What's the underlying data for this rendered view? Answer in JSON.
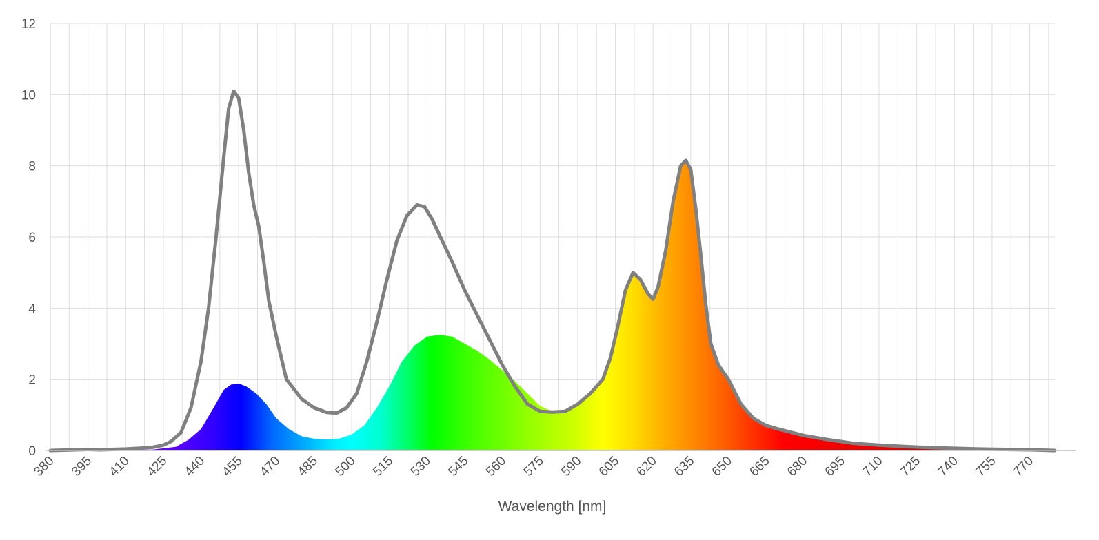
{
  "chart_data": {
    "type": "area",
    "xlabel": "Wavelength [nm]",
    "ylabel": "",
    "xlim": [
      380,
      780
    ],
    "ylim": [
      0,
      12
    ],
    "grid": true,
    "x_ticks": [
      380,
      395,
      410,
      425,
      440,
      455,
      470,
      485,
      500,
      515,
      530,
      545,
      560,
      575,
      590,
      605,
      620,
      635,
      650,
      665,
      680,
      695,
      710,
      725,
      740,
      755,
      770
    ],
    "y_ticks": [
      0,
      2,
      4,
      6,
      8,
      10,
      12
    ],
    "series": [
      {
        "style": "line",
        "color": "#808080",
        "points": [
          [
            380,
            0.0
          ],
          [
            390,
            0.02
          ],
          [
            395,
            0.03
          ],
          [
            400,
            0.02
          ],
          [
            410,
            0.04
          ],
          [
            420,
            0.08
          ],
          [
            425,
            0.15
          ],
          [
            428,
            0.25
          ],
          [
            432,
            0.5
          ],
          [
            436,
            1.2
          ],
          [
            440,
            2.5
          ],
          [
            443,
            4.0
          ],
          [
            446,
            6.0
          ],
          [
            449,
            8.2
          ],
          [
            451,
            9.6
          ],
          [
            453,
            10.1
          ],
          [
            455,
            9.9
          ],
          [
            457,
            9.0
          ],
          [
            459,
            7.8
          ],
          [
            461,
            6.9
          ],
          [
            463,
            6.3
          ],
          [
            465,
            5.3
          ],
          [
            467,
            4.2
          ],
          [
            470,
            3.2
          ],
          [
            474,
            2.0
          ],
          [
            480,
            1.45
          ],
          [
            485,
            1.2
          ],
          [
            490,
            1.07
          ],
          [
            494,
            1.05
          ],
          [
            498,
            1.2
          ],
          [
            502,
            1.6
          ],
          [
            506,
            2.5
          ],
          [
            510,
            3.6
          ],
          [
            514,
            4.8
          ],
          [
            518,
            5.9
          ],
          [
            522,
            6.6
          ],
          [
            526,
            6.9
          ],
          [
            529,
            6.85
          ],
          [
            532,
            6.5
          ],
          [
            536,
            5.9
          ],
          [
            540,
            5.3
          ],
          [
            545,
            4.5
          ],
          [
            550,
            3.8
          ],
          [
            555,
            3.1
          ],
          [
            560,
            2.4
          ],
          [
            565,
            1.8
          ],
          [
            570,
            1.3
          ],
          [
            575,
            1.1
          ],
          [
            580,
            1.08
          ],
          [
            585,
            1.1
          ],
          [
            590,
            1.3
          ],
          [
            595,
            1.6
          ],
          [
            600,
            2.0
          ],
          [
            603,
            2.6
          ],
          [
            606,
            3.5
          ],
          [
            609,
            4.5
          ],
          [
            612,
            5.0
          ],
          [
            615,
            4.8
          ],
          [
            618,
            4.4
          ],
          [
            620,
            4.25
          ],
          [
            622,
            4.6
          ],
          [
            625,
            5.6
          ],
          [
            628,
            7.0
          ],
          [
            631,
            8.0
          ],
          [
            633,
            8.15
          ],
          [
            635,
            7.9
          ],
          [
            637,
            6.8
          ],
          [
            639,
            5.5
          ],
          [
            641,
            4.1
          ],
          [
            643,
            3.0
          ],
          [
            646,
            2.4
          ],
          [
            650,
            2.0
          ],
          [
            655,
            1.3
          ],
          [
            660,
            0.9
          ],
          [
            665,
            0.7
          ],
          [
            670,
            0.6
          ],
          [
            680,
            0.42
          ],
          [
            690,
            0.3
          ],
          [
            700,
            0.2
          ],
          [
            710,
            0.15
          ],
          [
            720,
            0.11
          ],
          [
            730,
            0.08
          ],
          [
            740,
            0.06
          ],
          [
            750,
            0.04
          ],
          [
            760,
            0.03
          ],
          [
            770,
            0.02
          ],
          [
            780,
            0.0
          ]
        ]
      },
      {
        "style": "area",
        "color": "spectrum",
        "points": [
          [
            380,
            0.0
          ],
          [
            420,
            0.02
          ],
          [
            430,
            0.1
          ],
          [
            435,
            0.3
          ],
          [
            440,
            0.6
          ],
          [
            445,
            1.2
          ],
          [
            449,
            1.7
          ],
          [
            452,
            1.85
          ],
          [
            455,
            1.88
          ],
          [
            458,
            1.8
          ],
          [
            462,
            1.6
          ],
          [
            466,
            1.3
          ],
          [
            470,
            0.9
          ],
          [
            475,
            0.6
          ],
          [
            480,
            0.4
          ],
          [
            485,
            0.33
          ],
          [
            490,
            0.31
          ],
          [
            495,
            0.33
          ],
          [
            500,
            0.45
          ],
          [
            505,
            0.7
          ],
          [
            510,
            1.2
          ],
          [
            515,
            1.8
          ],
          [
            520,
            2.5
          ],
          [
            525,
            2.95
          ],
          [
            530,
            3.2
          ],
          [
            535,
            3.25
          ],
          [
            540,
            3.2
          ],
          [
            545,
            3.0
          ],
          [
            550,
            2.8
          ],
          [
            555,
            2.55
          ],
          [
            560,
            2.25
          ],
          [
            565,
            1.95
          ],
          [
            570,
            1.6
          ],
          [
            575,
            1.25
          ],
          [
            580,
            1.1
          ],
          [
            585,
            1.1
          ],
          [
            590,
            1.3
          ],
          [
            595,
            1.6
          ],
          [
            600,
            2.0
          ],
          [
            603,
            2.6
          ],
          [
            606,
            3.5
          ],
          [
            609,
            4.5
          ],
          [
            612,
            4.95
          ],
          [
            615,
            4.8
          ],
          [
            618,
            4.4
          ],
          [
            620,
            4.25
          ],
          [
            622,
            4.6
          ],
          [
            625,
            5.6
          ],
          [
            628,
            7.0
          ],
          [
            631,
            7.95
          ],
          [
            633,
            8.1
          ],
          [
            635,
            7.85
          ],
          [
            637,
            6.8
          ],
          [
            639,
            5.5
          ],
          [
            641,
            4.1
          ],
          [
            643,
            3.0
          ],
          [
            646,
            2.4
          ],
          [
            650,
            2.0
          ],
          [
            655,
            1.3
          ],
          [
            660,
            0.9
          ],
          [
            665,
            0.7
          ],
          [
            670,
            0.6
          ],
          [
            680,
            0.42
          ],
          [
            690,
            0.3
          ],
          [
            700,
            0.2
          ],
          [
            710,
            0.15
          ],
          [
            720,
            0.11
          ],
          [
            730,
            0.08
          ],
          [
            740,
            0.06
          ],
          [
            750,
            0.04
          ],
          [
            760,
            0.04
          ],
          [
            770,
            0.04
          ],
          [
            778,
            0.04
          ],
          [
            780,
            0.0
          ]
        ]
      }
    ]
  }
}
